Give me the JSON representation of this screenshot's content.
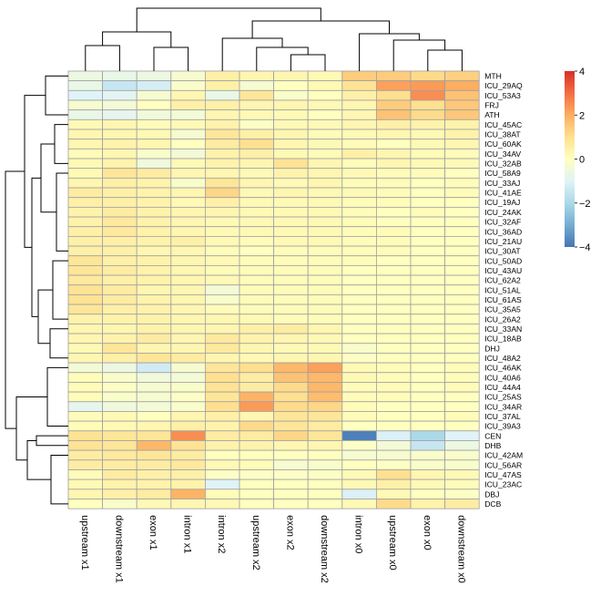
{
  "chart_data": {
    "type": "heatmap",
    "columns": [
      "upstream x1",
      "downstream x1",
      "exon x1",
      "intron x1",
      "intron x2",
      "upstream x2",
      "exon x2",
      "downstream x2",
      "intron x0",
      "upstream x0",
      "exon x0",
      "downstream x0"
    ],
    "rows": [
      "MTH",
      "ICU_29AQ",
      "ICU_53A3",
      "FRJ",
      "ATH",
      "ICU_45AC",
      "ICU_38AT",
      "ICU_60AK",
      "ICU_34AV",
      "ICU_32AB",
      "ICU_58A9",
      "ICU_33AJ",
      "ICU_41AE",
      "ICU_19AJ",
      "ICU_24AK",
      "ICU_32AF",
      "ICU_36AD",
      "ICU_21AU",
      "ICU_30AT",
      "ICU_50AD",
      "ICU_43AU",
      "ICU_62A2",
      "ICU_51AL",
      "ICU_61AS",
      "ICU_35A5",
      "ICU_26A2",
      "ICU_33AN",
      "ICU_18AB",
      "DHJ",
      "ICU_48A2",
      "ICU_46AK",
      "ICU_40A6",
      "ICU_44A4",
      "ICU_25AS",
      "ICU_34AR",
      "ICU_37AL",
      "ICU_39A3",
      "CEN",
      "DHB",
      "ICU_42AM",
      "ICU_56AR",
      "ICU_47AS",
      "ICU_23AC",
      "DBJ",
      "DCB"
    ],
    "values": [
      [
        -0.6,
        -0.7,
        -0.6,
        -0.3,
        0.5,
        0.3,
        0.3,
        0.2,
        1.4,
        1.4,
        1.1,
        1.3
      ],
      [
        -0.7,
        -1.5,
        -1.2,
        -0.2,
        0.5,
        -0.3,
        0.0,
        0.2,
        0.9,
        2.2,
        2.3,
        2.0
      ],
      [
        -1.0,
        -0.9,
        -0.3,
        0.3,
        -0.7,
        0.8,
        -0.2,
        0.0,
        0.5,
        1.0,
        2.5,
        1.6
      ],
      [
        -0.3,
        -0.4,
        0.0,
        0.5,
        0.5,
        0.3,
        0.3,
        0.2,
        0.3,
        1.4,
        1.0,
        1.5
      ],
      [
        -0.7,
        -0.8,
        -0.5,
        -0.4,
        0.3,
        0.2,
        0.2,
        0.0,
        0.3,
        1.6,
        1.1,
        1.5
      ],
      [
        0.2,
        0.3,
        0.1,
        0.2,
        0.4,
        -0.1,
        0.2,
        0.2,
        0.3,
        0.5,
        0.4,
        0.4
      ],
      [
        0.3,
        0.3,
        0.2,
        -0.3,
        0.8,
        0.5,
        0.3,
        0.1,
        0.2,
        0.3,
        0.2,
        0.4
      ],
      [
        0.3,
        0.4,
        0.3,
        0.0,
        0.6,
        1.0,
        0.3,
        0.2,
        0.1,
        0.0,
        0.2,
        0.3
      ],
      [
        0.1,
        0.3,
        -0.2,
        -0.4,
        0.4,
        0.5,
        0.2,
        0.1,
        0.5,
        0.3,
        0.1,
        0.1
      ],
      [
        0.2,
        0.4,
        -0.5,
        0.2,
        0.4,
        0.3,
        0.9,
        0.3,
        0.1,
        0.3,
        0.2,
        0.2
      ],
      [
        0.2,
        0.8,
        0.6,
        0.3,
        0.3,
        0.2,
        0.4,
        0.3,
        0.2,
        0.1,
        0.1,
        0.0
      ],
      [
        0.3,
        0.5,
        0.4,
        -0.2,
        0.8,
        0.3,
        0.2,
        0.3,
        0.1,
        0.1,
        0.0,
        0.1
      ],
      [
        0.6,
        0.5,
        0.4,
        0.3,
        1.2,
        0.2,
        0.3,
        0.2,
        0.2,
        0.1,
        0.0,
        0.1
      ],
      [
        0.5,
        0.5,
        0.4,
        0.2,
        0.5,
        0.2,
        0.2,
        0.2,
        0.1,
        0.1,
        0.0,
        0.0
      ],
      [
        0.4,
        0.6,
        0.4,
        0.3,
        0.3,
        0.2,
        0.2,
        0.2,
        0.1,
        0.0,
        0.1,
        0.0
      ],
      [
        0.4,
        0.7,
        0.4,
        0.3,
        0.2,
        0.2,
        0.2,
        0.2,
        0.1,
        0.0,
        0.0,
        0.0
      ],
      [
        0.5,
        0.7,
        0.4,
        0.3,
        0.2,
        0.2,
        0.2,
        0.2,
        0.1,
        0.1,
        0.0,
        0.0
      ],
      [
        0.5,
        0.5,
        0.4,
        0.5,
        0.2,
        0.1,
        0.2,
        0.2,
        0.1,
        0.1,
        0.0,
        0.0
      ],
      [
        0.5,
        0.5,
        0.3,
        0.3,
        0.1,
        0.0,
        0.1,
        0.1,
        0.1,
        0.1,
        0.0,
        0.0
      ],
      [
        0.8,
        0.5,
        0.4,
        0.3,
        0.2,
        0.1,
        0.1,
        0.1,
        0.1,
        0.0,
        0.0,
        0.0
      ],
      [
        0.8,
        0.6,
        0.4,
        0.3,
        0.1,
        0.1,
        0.1,
        0.1,
        0.0,
        0.0,
        0.0,
        0.0
      ],
      [
        0.7,
        0.5,
        0.4,
        0.3,
        0.2,
        0.1,
        0.1,
        0.1,
        0.0,
        0.0,
        0.0,
        0.0
      ],
      [
        0.9,
        0.6,
        0.3,
        0.3,
        -0.4,
        0.1,
        0.1,
        0.1,
        0.0,
        0.0,
        0.0,
        0.0
      ],
      [
        0.9,
        0.6,
        0.4,
        0.3,
        -0.2,
        0.1,
        0.1,
        0.1,
        0.0,
        0.0,
        0.0,
        0.0
      ],
      [
        0.8,
        0.5,
        0.4,
        0.3,
        0.1,
        0.1,
        0.1,
        0.1,
        0.0,
        0.0,
        0.0,
        0.0
      ],
      [
        0.4,
        0.4,
        0.4,
        0.3,
        0.3,
        0.2,
        0.1,
        0.1,
        0.0,
        0.0,
        0.0,
        0.0
      ],
      [
        0.3,
        0.3,
        0.4,
        0.3,
        0.3,
        0.5,
        0.6,
        0.3,
        0.0,
        0.0,
        0.0,
        0.0
      ],
      [
        0.3,
        0.4,
        0.6,
        0.3,
        0.7,
        0.4,
        0.3,
        0.2,
        0.0,
        0.0,
        0.0,
        0.0
      ],
      [
        0.2,
        0.8,
        0.3,
        0.3,
        0.7,
        0.3,
        0.2,
        0.2,
        -0.2,
        0.0,
        0.0,
        0.0
      ],
      [
        0.3,
        0.5,
        0.8,
        0.6,
        0.3,
        0.2,
        0.3,
        0.3,
        -0.1,
        0.0,
        0.0,
        0.0
      ],
      [
        -0.4,
        -0.6,
        -1.3,
        -0.3,
        0.8,
        1.0,
        1.8,
        2.2,
        0.2,
        0.1,
        0.0,
        0.1
      ],
      [
        0.1,
        -0.2,
        -0.5,
        -0.4,
        1.0,
        0.6,
        1.6,
        1.8,
        0.2,
        0.1,
        0.0,
        0.1
      ],
      [
        0.1,
        -0.1,
        -0.3,
        -0.2,
        0.9,
        0.6,
        1.1,
        1.8,
        0.1,
        0.1,
        0.0,
        0.1
      ],
      [
        0.1,
        -0.2,
        -0.3,
        -0.1,
        0.8,
        1.9,
        1.0,
        1.7,
        0.1,
        0.1,
        0.0,
        0.0
      ],
      [
        -0.8,
        -0.5,
        -0.4,
        -0.2,
        1.0,
        2.3,
        1.1,
        1.2,
        0.1,
        0.0,
        0.0,
        0.0
      ],
      [
        0.1,
        0.2,
        0.0,
        0.3,
        0.5,
        0.3,
        0.8,
        0.8,
        0.1,
        0.0,
        0.0,
        0.1
      ],
      [
        0.1,
        0.2,
        0.3,
        0.5,
        0.4,
        1.1,
        0.8,
        0.6,
        0.0,
        0.0,
        0.0,
        0.0
      ],
      [
        0.9,
        0.8,
        0.8,
        2.5,
        0.6,
        0.6,
        1.2,
        0.8,
        -3.8,
        -1.1,
        -2.0,
        -1.0
      ],
      [
        0.9,
        0.8,
        1.8,
        0.9,
        0.4,
        0.4,
        0.3,
        0.3,
        -0.1,
        -0.4,
        -1.5,
        -0.6
      ],
      [
        0.6,
        0.7,
        0.8,
        0.6,
        0.0,
        0.0,
        0.0,
        0.0,
        -0.3,
        -0.3,
        -0.2,
        -0.2
      ],
      [
        0.6,
        0.6,
        0.6,
        0.7,
        0.2,
        0.1,
        -0.3,
        -0.2,
        0.0,
        -0.1,
        -0.2,
        -0.2
      ],
      [
        0.1,
        0.6,
        0.5,
        0.5,
        -0.1,
        -0.1,
        -0.1,
        -0.1,
        0.2,
        1.0,
        0.3,
        0.2
      ],
      [
        0.2,
        0.4,
        0.4,
        0.4,
        -1.0,
        0.0,
        0.0,
        0.0,
        0.2,
        0.5,
        0.2,
        0.1
      ],
      [
        0.3,
        0.5,
        0.6,
        1.9,
        0.1,
        0.0,
        0.0,
        0.0,
        -1.1,
        0.2,
        0.0,
        -0.1
      ],
      [
        0.0,
        -0.2,
        0.2,
        0.3,
        0.2,
        0.0,
        0.0,
        0.0,
        0.2,
        1.1,
        0.4,
        0.6
      ]
    ],
    "colorbar_ticks": [
      4,
      2,
      0,
      -2,
      -4
    ],
    "value_range": [
      -4,
      4
    ],
    "colormap": [
      "#4575b4",
      "#74add1",
      "#abd9e9",
      "#e0f3f8",
      "#ffffbf",
      "#fee090",
      "#fdae61",
      "#f46d43",
      "#d73027"
    ],
    "cell_border_color": "#a0a0a0"
  }
}
